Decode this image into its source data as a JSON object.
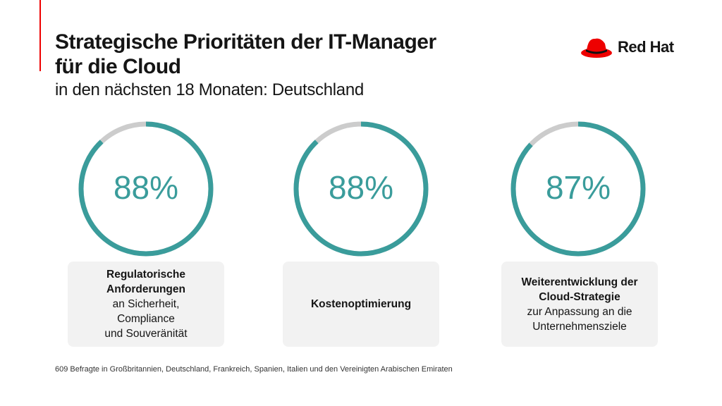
{
  "header": {
    "title_line1": "Strategische Prioritäten der IT-Manager",
    "title_line2": "für die Cloud",
    "subtitle": "in den nächsten 18 Monaten: Deutschland"
  },
  "logo": {
    "text": "Red Hat",
    "color": "#ee0000"
  },
  "colors": {
    "accent": "#3a9c9b",
    "remainder": "#cccccc",
    "brand": "#ee0000"
  },
  "chart_data": {
    "type": "gauge",
    "items": [
      {
        "value": 88,
        "label": "88%",
        "title_bold": [
          "Regulatorische",
          "Anforderungen"
        ],
        "title_rest": [
          "an Sicherheit,",
          "Compliance",
          "und Souveränität"
        ]
      },
      {
        "value": 88,
        "label": "88%",
        "title_bold": [
          "Kostenoptimierung"
        ],
        "title_rest": []
      },
      {
        "value": 87,
        "label": "87%",
        "title_bold": [
          "Weiterentwicklung der",
          "Cloud-Strategie"
        ],
        "title_rest": [
          "zur Anpassung an die",
          "Unternehmensziele"
        ]
      }
    ]
  },
  "footnote": "609 Befragte in Großbritannien, Deutschland, Frankreich, Spanien, Italien und den Vereinigten Arabischen Emiraten"
}
